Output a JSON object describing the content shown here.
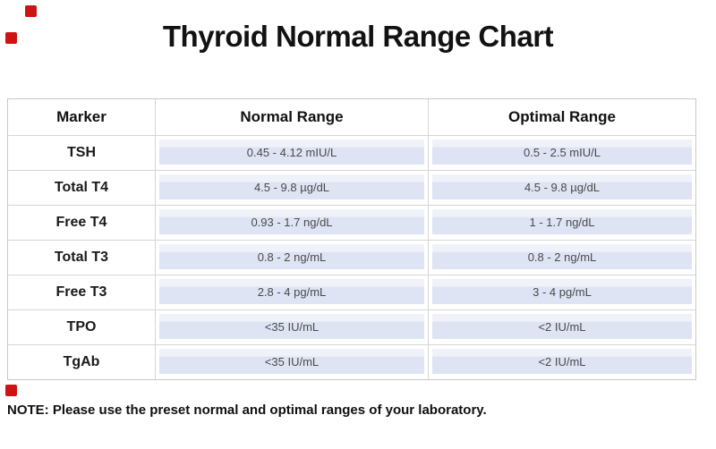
{
  "title": "Thyroid Normal Range Chart",
  "note": "NOTE: Please use the preset normal and optimal ranges of your laboratory.",
  "chart_data": {
    "type": "table",
    "title": "Thyroid Normal Range Chart",
    "columns": [
      "Marker",
      "Normal Range",
      "Optimal Range"
    ],
    "rows": [
      [
        "TSH",
        "0.45 - 4.12 mIU/L",
        "0.5 - 2.5 mIU/L"
      ],
      [
        "Total T4",
        "4.5 - 9.8 µg/dL",
        "4.5 - 9.8 µg/dL"
      ],
      [
        "Free T4",
        "0.93 - 1.7 ng/dL",
        "1 - 1.7 ng/dL"
      ],
      [
        "Total T3",
        "0.8 - 2 ng/mL",
        "0.8 - 2 ng/mL"
      ],
      [
        "Free T3",
        "2.8 - 4 pg/mL",
        "3 - 4 pg/mL"
      ],
      [
        "TPO",
        "<35 IU/mL",
        "<2 IU/mL"
      ],
      [
        "TgAb",
        "<35 IU/mL",
        "<2 IU/mL"
      ]
    ],
    "note": "NOTE: Please use the preset normal and optimal ranges of your laboratory."
  },
  "colors": {
    "band": "#dfe4f4",
    "band_highlight": "#f0f2fa",
    "border": "#c9c9c9",
    "value_text": "#4a4a4a",
    "red_marker": "#cc1414"
  }
}
